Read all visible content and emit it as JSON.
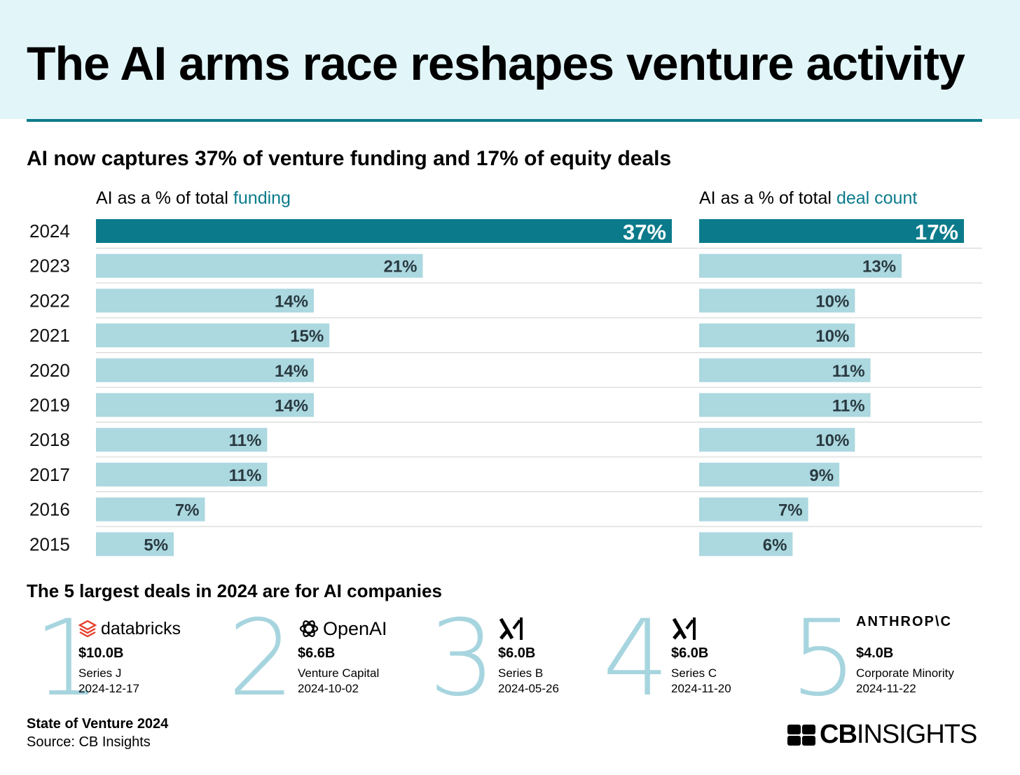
{
  "title": "The AI arms race reshapes venture activity",
  "subtitle": "AI now captures 37% of venture funding and 17% of equity deals",
  "left_header": {
    "prefix": "AI as a % of total ",
    "highlight": "funding"
  },
  "right_header": {
    "prefix": "AI as a % of total ",
    "highlight": "deal count"
  },
  "colors": {
    "accent": "#0b7b8b",
    "bar_light": "#acd8e0",
    "header_bg": "#e2f6fa",
    "rank_digit": "#a7d5df"
  },
  "chart_data": {
    "type": "bar",
    "orientation": "horizontal",
    "categories": [
      "2024",
      "2023",
      "2022",
      "2021",
      "2020",
      "2019",
      "2018",
      "2017",
      "2016",
      "2015"
    ],
    "series": [
      {
        "name": "AI as a % of total funding",
        "values": [
          37,
          21,
          14,
          15,
          14,
          14,
          11,
          11,
          7,
          5
        ],
        "labels": [
          "37%",
          "21%",
          "14%",
          "15%",
          "14%",
          "14%",
          "11%",
          "11%",
          "7%",
          "5%"
        ]
      },
      {
        "name": "AI as a % of total deal count",
        "values": [
          17,
          13,
          10,
          10,
          11,
          11,
          10,
          9,
          7,
          6
        ],
        "labels": [
          "17%",
          "13%",
          "10%",
          "10%",
          "11%",
          "11%",
          "10%",
          "9%",
          "7%",
          "6%"
        ]
      }
    ],
    "highlight_category": "2024",
    "xlim": [
      0,
      37
    ]
  },
  "deals_title": "The 5 largest deals in 2024 are for AI companies",
  "deals": [
    {
      "rank": "1",
      "company": "databricks",
      "amount": "$10.0B",
      "round": "Series J",
      "date": "2024-12-17"
    },
    {
      "rank": "2",
      "company": "OpenAI",
      "amount": "$6.6B",
      "round": "Venture Capital",
      "date": "2024-10-02"
    },
    {
      "rank": "3",
      "company": "xAI",
      "amount": "$6.0B",
      "round": "Series B",
      "date": "2024-05-26"
    },
    {
      "rank": "4",
      "company": "xAI",
      "amount": "$6.0B",
      "round": "Series C",
      "date": "2024-11-20"
    },
    {
      "rank": "5",
      "company": "ANTHROP\\C",
      "amount": "$4.0B",
      "round": "Corporate Minority",
      "date": "2024-11-22"
    }
  ],
  "footer": {
    "report": "State of Venture 2024",
    "source": "Source: CB Insights"
  },
  "brand": {
    "part1": "CB",
    "part2": "INSIGHTS"
  }
}
